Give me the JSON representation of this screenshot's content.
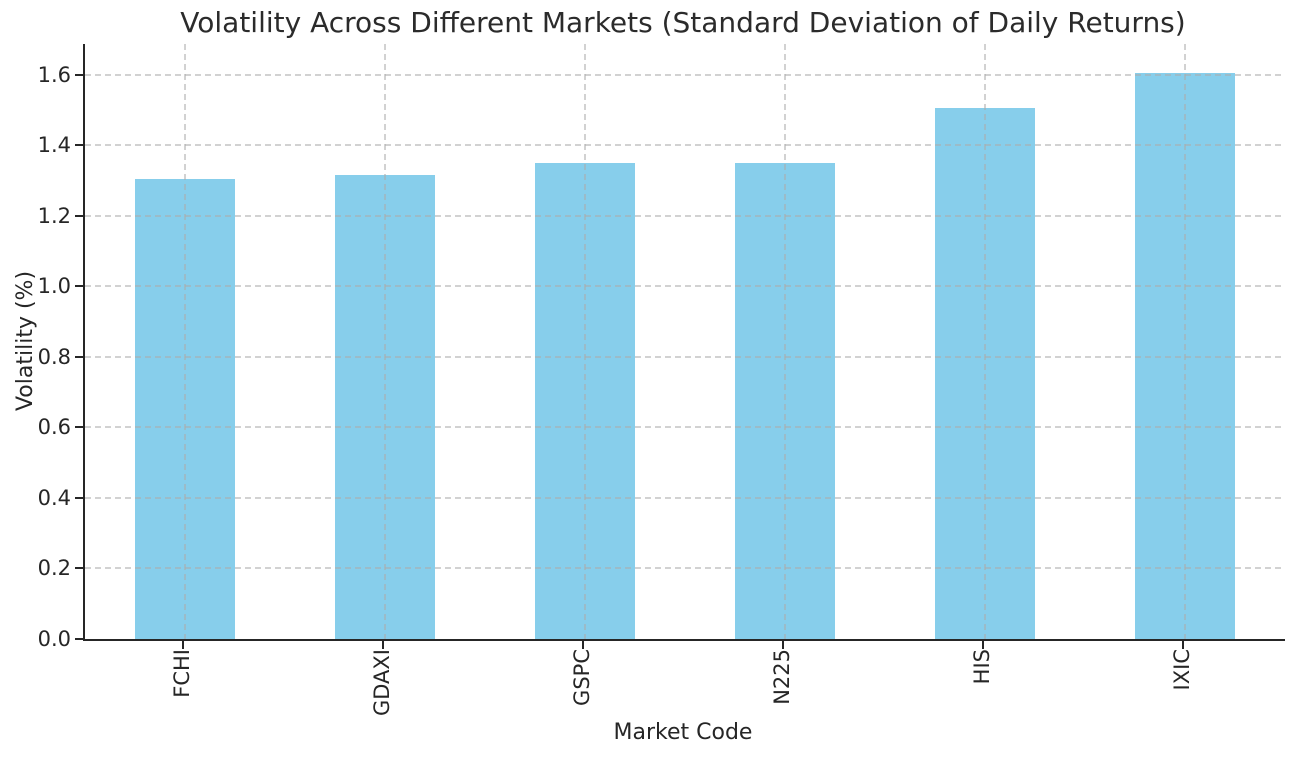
{
  "chart_data": {
    "type": "bar",
    "title": "Volatility Across Different Markets (Standard Deviation of Daily Returns)",
    "xlabel": "Market Code",
    "ylabel": "Volatility (%)",
    "categories": [
      "FCHI",
      "GDAXI",
      "GSPC",
      "N225",
      "HIS",
      "IXIC"
    ],
    "values": [
      1.305,
      1.315,
      1.35,
      1.35,
      1.505,
      1.605
    ],
    "yticks": [
      "0.0",
      "0.2",
      "0.4",
      "0.6",
      "0.8",
      "1.0",
      "1.2",
      "1.4",
      "1.6"
    ],
    "ylim": [
      0,
      1.687
    ],
    "bar_color": "#87CEEB",
    "grid": "both-dashed",
    "legend": false,
    "x_tick_rotation": 90,
    "axis_color": "#262626",
    "grid_color": "#acacac",
    "background_color": "#ffffff"
  }
}
